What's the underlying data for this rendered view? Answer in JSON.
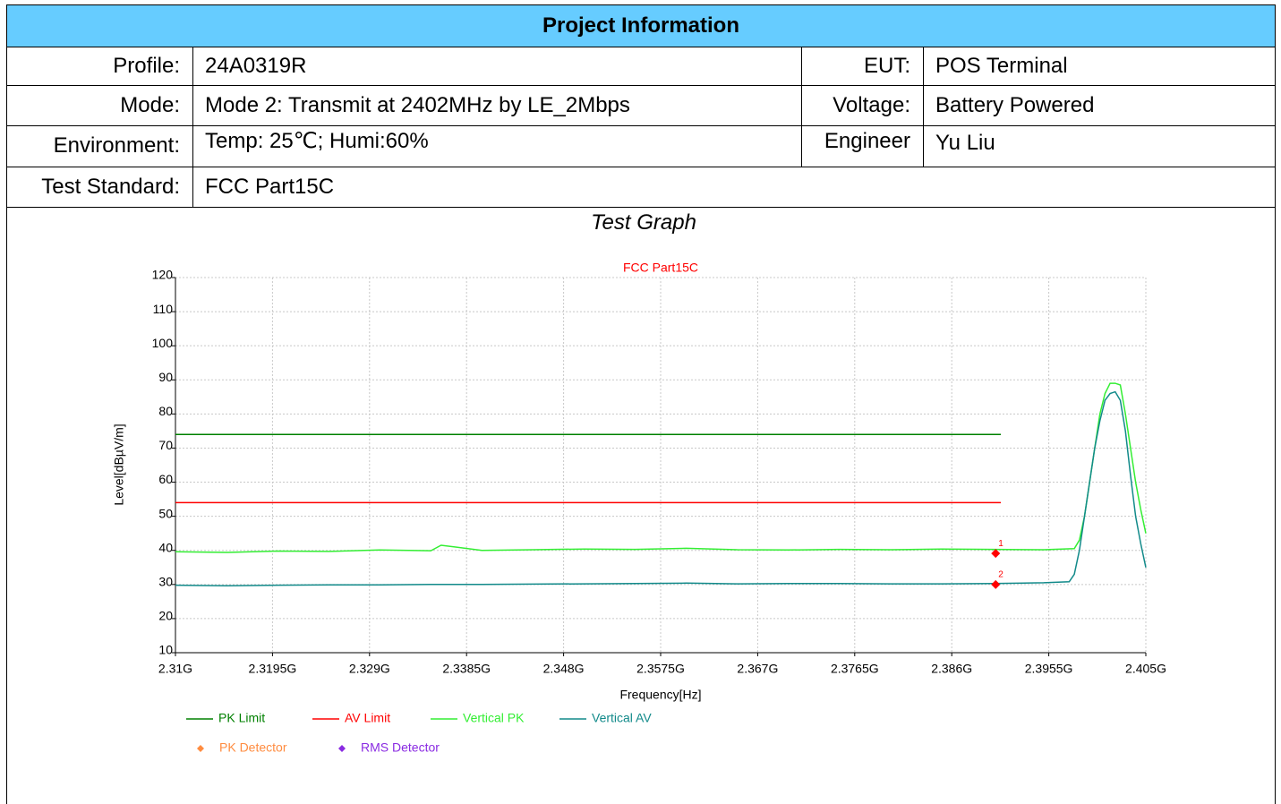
{
  "header": {
    "title": "Project Information"
  },
  "table": {
    "rows": [
      [
        "Profile:",
        "24A0319R",
        "EUT:",
        "POS Terminal"
      ],
      [
        "Mode:",
        "Mode 2: Transmit at 2402MHz by LE_2Mbps",
        "Voltage:",
        "Battery Powered"
      ],
      [
        "Environment:",
        "Temp: 25℃; Humi:60%",
        "Engineer",
        "Yu Liu"
      ],
      [
        "Test Standard:",
        "FCC Part15C"
      ]
    ]
  },
  "section_title": "Test Graph",
  "chart_data": {
    "type": "line",
    "title": "FCC Part15C",
    "x_label": "Frequency[Hz]",
    "y_label": "Level[dBµV/m]",
    "xlim": [
      2310000000,
      2405000000
    ],
    "xticks": [
      {
        "value": 2310000000,
        "label": "2.31G"
      },
      {
        "value": 2319500000,
        "label": "2.3195G"
      },
      {
        "value": 2329000000,
        "label": "2.329G"
      },
      {
        "value": 2338500000,
        "label": "2.3385G"
      },
      {
        "value": 2348000000,
        "label": "2.348G"
      },
      {
        "value": 2357500000,
        "label": "2.3575G"
      },
      {
        "value": 2367000000,
        "label": "2.367G"
      },
      {
        "value": 2376500000,
        "label": "2.3765G"
      },
      {
        "value": 2386000000,
        "label": "2.386G"
      },
      {
        "value": 2395500000,
        "label": "2.3955G"
      },
      {
        "value": 2405000000,
        "label": "2.405G"
      }
    ],
    "ylim": [
      10,
      120
    ],
    "yticks": [
      10,
      20,
      30,
      40,
      50,
      60,
      70,
      80,
      90,
      100,
      110,
      120
    ],
    "grid": true,
    "series": [
      {
        "name": "PK Limit",
        "color": "#008000",
        "x": [
          2310000000,
          2390800000
        ],
        "values": [
          74,
          74
        ]
      },
      {
        "name": "AV Limit",
        "color": "#ff0000",
        "x": [
          2310000000,
          2390800000
        ],
        "values": [
          54,
          54
        ]
      },
      {
        "name": "Vertical PK",
        "color": "#33ee33",
        "x": [
          2310000000,
          2315000000,
          2320000000,
          2325000000,
          2330000000,
          2335000000,
          2336000000,
          2340000000,
          2345000000,
          2350000000,
          2355000000,
          2360000000,
          2365000000,
          2370000000,
          2375000000,
          2380000000,
          2385000000,
          2390000000,
          2395000000,
          2398000000,
          2398500000,
          2399000000,
          2399500000,
          2400000000,
          2400500000,
          2401000000,
          2401500000,
          2402000000,
          2402500000,
          2403000000,
          2403500000,
          2404000000,
          2404500000,
          2405000000
        ],
        "values": [
          39.6,
          39.4,
          39.8,
          39.7,
          40.1,
          39.9,
          41.5,
          40.0,
          40.2,
          40.4,
          40.3,
          40.6,
          40.2,
          40.1,
          40.3,
          40.2,
          40.4,
          40.3,
          40.2,
          40.5,
          43,
          50,
          60,
          70,
          80,
          86,
          89,
          89,
          88.5,
          80,
          70,
          60,
          52,
          45
        ]
      },
      {
        "name": "Vertical AV",
        "color": "#128a8a",
        "x": [
          2310000000,
          2315000000,
          2320000000,
          2325000000,
          2330000000,
          2335000000,
          2340000000,
          2345000000,
          2350000000,
          2355000000,
          2360000000,
          2365000000,
          2370000000,
          2375000000,
          2380000000,
          2385000000,
          2390000000,
          2395000000,
          2397500000,
          2398000000,
          2398500000,
          2399000000,
          2399500000,
          2400000000,
          2400500000,
          2401000000,
          2401500000,
          2402000000,
          2402500000,
          2403000000,
          2403500000,
          2404000000,
          2404500000,
          2405000000
        ],
        "values": [
          29.8,
          29.6,
          29.8,
          29.9,
          29.9,
          30.0,
          30.0,
          30.1,
          30.2,
          30.3,
          30.4,
          30.2,
          30.3,
          30.3,
          30.2,
          30.2,
          30.3,
          30.5,
          30.8,
          33,
          40,
          50,
          60,
          70,
          78,
          84,
          86,
          86.5,
          84,
          75,
          62,
          50,
          42,
          35
        ]
      }
    ],
    "markers": [
      {
        "label": "1",
        "x": 2390300000,
        "y": 39.1,
        "color": "#ff0000"
      },
      {
        "label": "2",
        "x": 2390300000,
        "y": 30.0,
        "color": "#ff0000"
      }
    ],
    "detectors": [
      {
        "name": "PK Detector",
        "color": "#ff8c40"
      },
      {
        "name": "RMS Detector",
        "color": "#8a2be2"
      }
    ]
  }
}
